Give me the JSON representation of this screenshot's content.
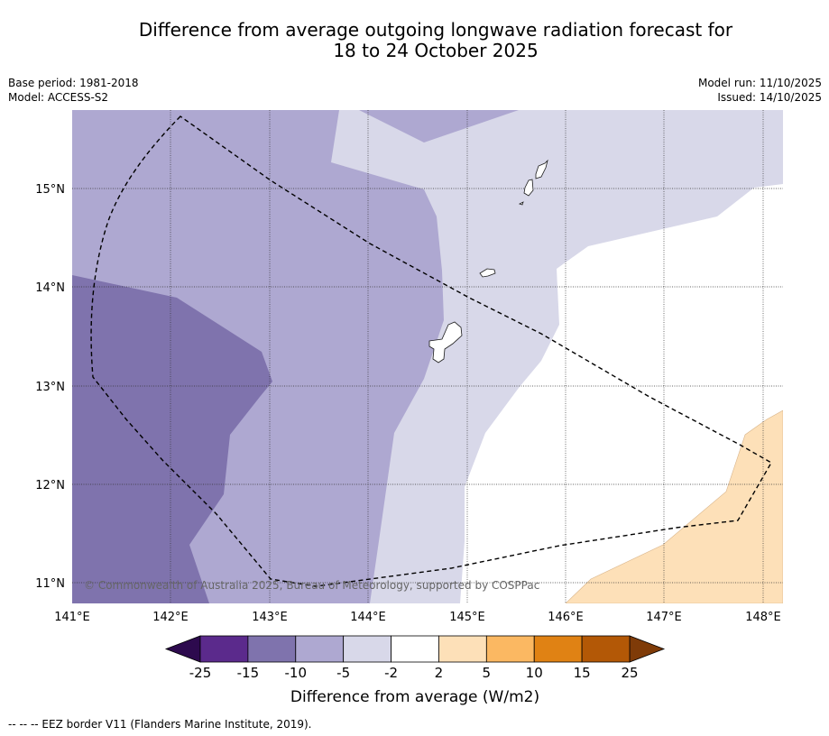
{
  "title": {
    "line1": "Difference from average outgoing longwave radiation forecast for",
    "line2": "18 to 24 October 2025"
  },
  "meta_left": {
    "base_period": "Base period: 1981-2018",
    "model": "Model: ACCESS-S2"
  },
  "meta_right": {
    "model_run": "Model run: 11/10/2025",
    "issued": "Issued: 14/10/2025"
  },
  "map": {
    "lon_labels": [
      "141°E",
      "142°E",
      "143°E",
      "144°E",
      "145°E",
      "146°E",
      "147°E",
      "148°E"
    ],
    "lat_labels": [
      "15°N",
      "14°N",
      "13°N",
      "12°N",
      "11°N"
    ],
    "copyright": "© Commonwealth of Australia 2025, Bureau of Meteorology, supported by COSPPac",
    "regions": {
      "minus_15_to_minus_10": "#7f73ad",
      "minus_10_to_minus_5": "#aea8d1",
      "minus_5_to_minus_2": "#d8d8e9",
      "minus_2_to_2": "#ffffff",
      "plus_2_to_5": "#fde0b8"
    }
  },
  "colorbar": {
    "ticks": [
      "-25",
      "-15",
      "-10",
      "-5",
      "-2",
      "2",
      "5",
      "10",
      "15",
      "25"
    ],
    "colors": [
      "#5b2a8c",
      "#7f73ad",
      "#aea8d1",
      "#d8d8e9",
      "#ffffff",
      "#fde0b8",
      "#fbb862",
      "#e08214",
      "#b35806"
    ],
    "extend_low": "#2d0a4e",
    "extend_high": "#7f3b08",
    "label": "Difference from average (W/m2)"
  },
  "footer": {
    "legend": "--  --  -- EEZ border V11 (Flanders Marine Institute, 2019)."
  }
}
